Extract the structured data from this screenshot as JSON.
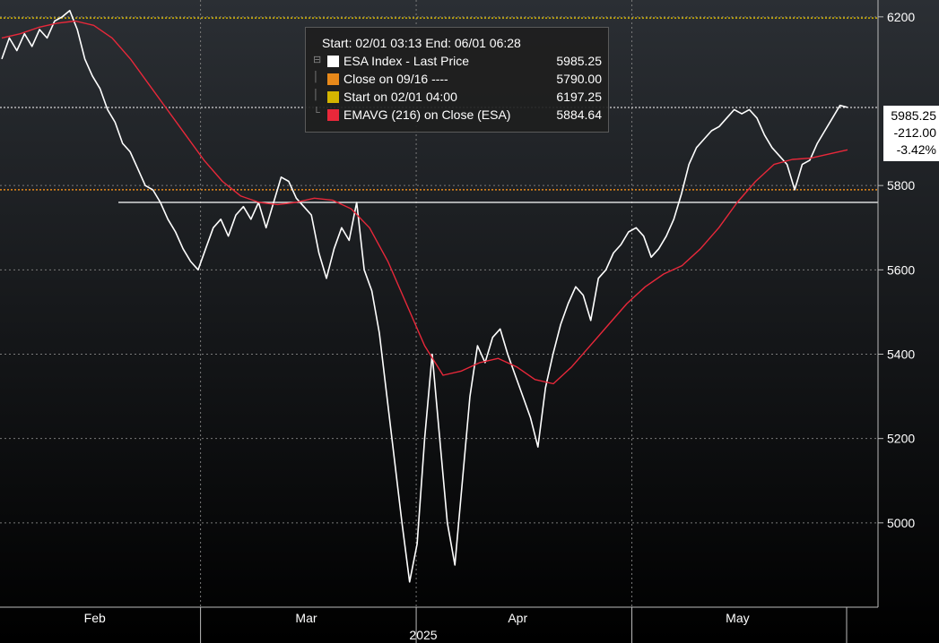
{
  "chart_data": {
    "type": "line",
    "title": "",
    "header": "Start: 02/01 03:13  End: 06/01 06:28",
    "x_ticks": [
      "Feb",
      "Mar",
      "Apr",
      "May"
    ],
    "x_year": "2025",
    "ylim": [
      4800,
      6240
    ],
    "y_ticks": [
      5000,
      5200,
      5400,
      5600,
      5800,
      6200
    ],
    "grid": true,
    "legend_position": "top-center",
    "series": [
      {
        "name": "ESA Index - Last Price",
        "label": "ESA Index - Last Price",
        "legend_value": "5985.25",
        "color": "#ffffff",
        "values": [
          6100,
          6150,
          6120,
          6160,
          6130,
          6170,
          6150,
          6190,
          6200,
          6215,
          6170,
          6100,
          6060,
          6030,
          5980,
          5950,
          5900,
          5880,
          5840,
          5800,
          5790,
          5760,
          5720,
          5690,
          5650,
          5620,
          5600,
          5650,
          5700,
          5720,
          5680,
          5730,
          5750,
          5720,
          5760,
          5700,
          5760,
          5820,
          5810,
          5770,
          5750,
          5730,
          5640,
          5580,
          5650,
          5700,
          5670,
          5760,
          5600,
          5550,
          5450,
          5300,
          5150,
          5000,
          4860,
          4950,
          5200,
          5400,
          5200,
          5000,
          4900,
          5100,
          5300,
          5420,
          5380,
          5440,
          5460,
          5400,
          5350,
          5300,
          5250,
          5180,
          5320,
          5400,
          5470,
          5520,
          5560,
          5540,
          5480,
          5580,
          5600,
          5640,
          5660,
          5690,
          5700,
          5680,
          5630,
          5650,
          5680,
          5720,
          5780,
          5850,
          5890,
          5910,
          5930,
          5940,
          5960,
          5980,
          5970,
          5980,
          5960,
          5920,
          5890,
          5870,
          5850,
          5790,
          5850,
          5860,
          5900,
          5930,
          5960,
          5990,
          5985.25
        ]
      },
      {
        "name": "EMAVG (216) on Close (ESA)",
        "label": "EMAVG (216)  on Close (ESA)",
        "legend_value": "5884.64",
        "color": "#e8283a",
        "values": [
          6150,
          6160,
          6175,
          6185,
          6190,
          6180,
          6150,
          6100,
          6040,
          5980,
          5920,
          5860,
          5810,
          5775,
          5760,
          5755,
          5760,
          5770,
          5765,
          5745,
          5700,
          5620,
          5520,
          5420,
          5350,
          5360,
          5380,
          5390,
          5370,
          5340,
          5330,
          5370,
          5420,
          5470,
          5520,
          5560,
          5590,
          5610,
          5650,
          5700,
          5760,
          5810,
          5850,
          5862,
          5865,
          5875,
          5884.64
        ]
      }
    ],
    "reference_lines": [
      {
        "label": "Close on 09/16 ----",
        "legend_value": "5790.00",
        "value": 5790,
        "color": "#e8891a",
        "dotted": true
      },
      {
        "label": "Start on 02/01 04:00",
        "legend_value": "6197.25",
        "value": 6197.25,
        "color": "#d4b400",
        "dotted": true
      }
    ],
    "annotations": {
      "last_price": "5985.25",
      "change": "-212.00",
      "change_pct": "-3.42%",
      "horizontal_line_value": 5760
    }
  }
}
